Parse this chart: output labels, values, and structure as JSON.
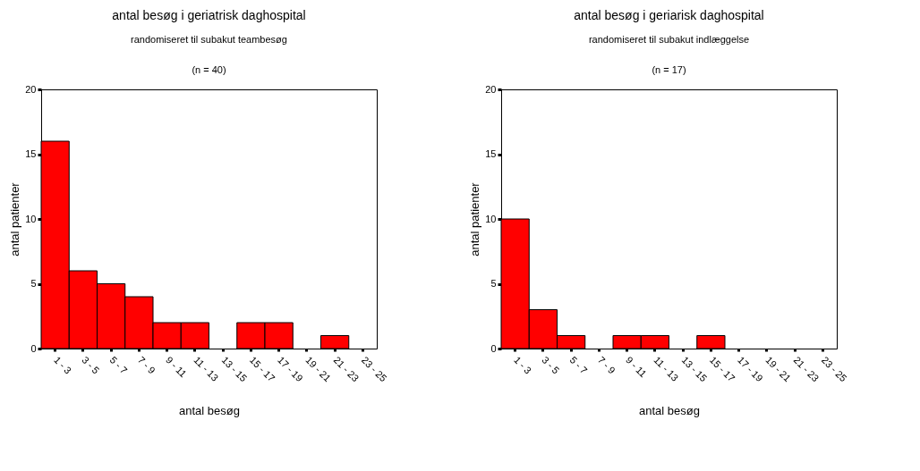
{
  "chart_data": [
    {
      "type": "bar",
      "title": "antal besøg i geriatrisk daghospital",
      "subtitle": "randomiseret til subakut teambesøg",
      "annotations": [
        "(n = 40)"
      ],
      "xlabel": "antal besøg",
      "ylabel": "antal patienter",
      "categories": [
        "1 - 3",
        "3 - 5",
        "5 - 7",
        "7 - 9",
        "9 - 11",
        "11 - 13",
        "13 - 15",
        "15 - 17",
        "17 - 19",
        "19 - 21",
        "21 - 23",
        "23 - 25"
      ],
      "values": [
        16,
        6,
        5,
        4,
        2,
        2,
        0,
        2,
        2,
        0,
        1,
        0
      ],
      "color": "#ff0000",
      "ylim": [
        0,
        20
      ],
      "yticks": [
        0,
        5,
        10,
        15,
        20
      ],
      "grid": false
    },
    {
      "type": "bar",
      "title": "antal besøg i geriarisk daghospital",
      "subtitle": "randomiseret til subakut indlæggelse",
      "annotations": [
        "(n = 17)"
      ],
      "xlabel": "antal besøg",
      "ylabel": "antal patienter",
      "categories": [
        "1 - 3",
        "3 - 5",
        "5 - 7",
        "7 - 9",
        "9 - 11",
        "11 - 13",
        "13 - 15",
        "15 - 17",
        "17 - 19",
        "19 - 21",
        "21 - 23",
        "23 - 25"
      ],
      "values": [
        10,
        3,
        1,
        0,
        1,
        1,
        0,
        1,
        0,
        0,
        0,
        0
      ],
      "color": "#ff0000",
      "ylim": [
        0,
        20
      ],
      "yticks": [
        0,
        5,
        10,
        15,
        20
      ],
      "grid": false
    }
  ]
}
